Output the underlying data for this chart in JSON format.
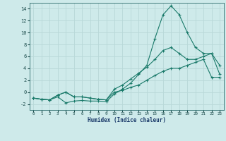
{
  "xlabel": "Humidex (Indice chaleur)",
  "bg_color": "#ceeaea",
  "grid_color": "#b8d8d8",
  "line_color": "#1a7a6a",
  "xlim": [
    -0.5,
    23.5
  ],
  "ylim": [
    -3,
    15
  ],
  "xticks": [
    0,
    1,
    2,
    3,
    4,
    5,
    6,
    7,
    8,
    9,
    10,
    11,
    12,
    13,
    14,
    15,
    16,
    17,
    18,
    19,
    20,
    21,
    22,
    23
  ],
  "yticks": [
    -2,
    0,
    2,
    4,
    6,
    8,
    10,
    12,
    14
  ],
  "line1_x": [
    0,
    1,
    2,
    3,
    4,
    5,
    6,
    7,
    8,
    9,
    10,
    11,
    12,
    13,
    14,
    15,
    16,
    17,
    18,
    19,
    20,
    21,
    22,
    23
  ],
  "line1_y": [
    -1.0,
    -1.2,
    -1.3,
    -0.8,
    -1.8,
    -1.5,
    -1.4,
    -1.5,
    -1.5,
    -1.6,
    -0.3,
    0.5,
    1.5,
    3.0,
    4.5,
    9.0,
    13.0,
    14.5,
    13.0,
    10.0,
    7.5,
    6.5,
    6.5,
    4.5
  ],
  "line2_x": [
    0,
    1,
    2,
    3,
    4,
    5,
    6,
    7,
    8,
    9,
    10,
    11,
    12,
    13,
    14,
    15,
    16,
    17,
    18,
    19,
    20,
    21,
    22,
    23
  ],
  "line2_y": [
    -1.0,
    -1.2,
    -1.3,
    -0.5,
    0.0,
    -0.8,
    -0.8,
    -1.0,
    -1.2,
    -1.3,
    0.5,
    1.2,
    2.2,
    3.2,
    4.2,
    5.5,
    7.0,
    7.5,
    6.5,
    5.5,
    5.5,
    6.0,
    6.5,
    3.0
  ],
  "line3_x": [
    0,
    1,
    2,
    3,
    4,
    5,
    6,
    7,
    8,
    9,
    10,
    11,
    12,
    13,
    14,
    15,
    16,
    17,
    18,
    19,
    20,
    21,
    22,
    23
  ],
  "line3_y": [
    -1.0,
    -1.2,
    -1.3,
    -0.5,
    0.0,
    -0.8,
    -0.8,
    -1.0,
    -1.2,
    -1.3,
    0.0,
    0.3,
    0.8,
    1.2,
    2.0,
    2.8,
    3.5,
    4.0,
    4.0,
    4.5,
    5.0,
    5.5,
    2.5,
    2.5
  ]
}
